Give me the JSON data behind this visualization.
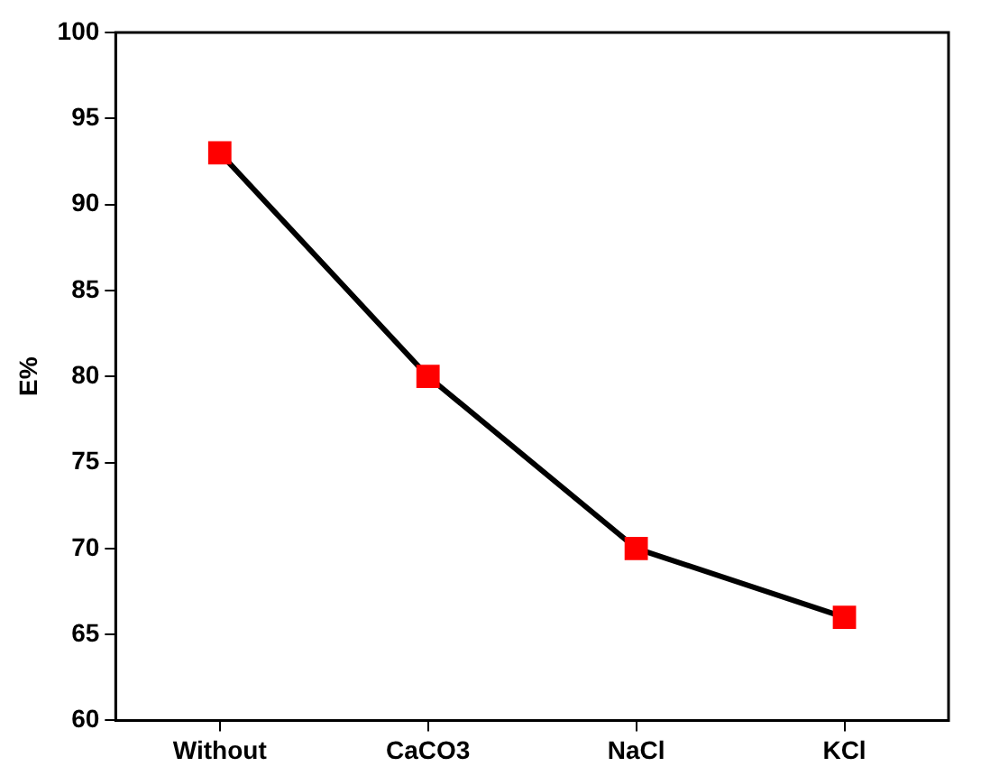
{
  "chart_data": {
    "type": "line",
    "ylabel": "E%",
    "categories": [
      "Without",
      "CaCO3",
      "NaCl",
      "KCl"
    ],
    "series": [
      {
        "color": "#000000",
        "colors": [
          "#ff0000",
          "#ff0000",
          "#ff0000",
          "#ff0000"
        ],
        "values": [
          93,
          80,
          70,
          66
        ]
      }
    ],
    "marker": "square",
    "line_style": "solid",
    "ylim": [
      60,
      100
    ],
    "yticks": [
      60,
      65,
      70,
      75,
      80,
      85,
      90,
      95,
      100
    ],
    "grid": false,
    "legend": false
  }
}
